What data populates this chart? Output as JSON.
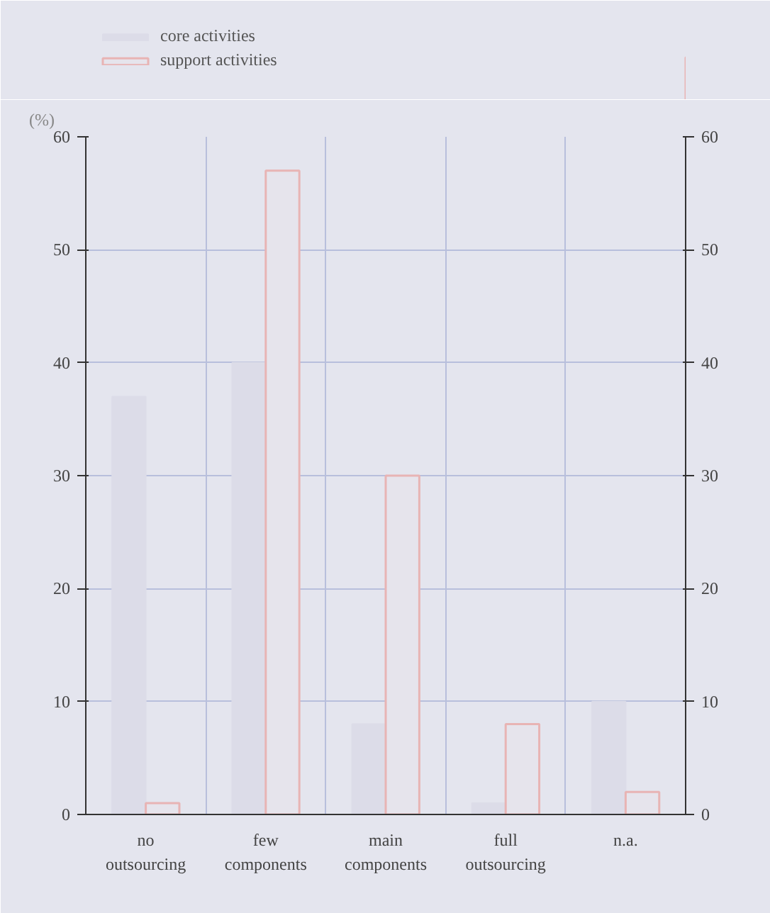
{
  "chart_data": {
    "type": "bar",
    "ylabel": "(%)",
    "categories": [
      "no\noutsourcing",
      "few\ncomponents",
      "main\ncomponents",
      "full\noutsourcing",
      "n.a."
    ],
    "series": [
      {
        "name": "core activities",
        "color": "#dcdce8",
        "values": [
          37,
          40,
          8,
          1,
          10
        ]
      },
      {
        "name": "support activities",
        "color": "#e8b4b4",
        "values": [
          1,
          57,
          30,
          8,
          2
        ]
      }
    ],
    "ylim": [
      0,
      60
    ],
    "yticks": [
      0,
      10,
      20,
      30,
      40,
      50,
      60
    ],
    "y2lim": [
      0,
      60
    ],
    "y2ticks": [
      0,
      10,
      20,
      30,
      40,
      50,
      60
    ],
    "grid": true,
    "legend": "top left"
  }
}
